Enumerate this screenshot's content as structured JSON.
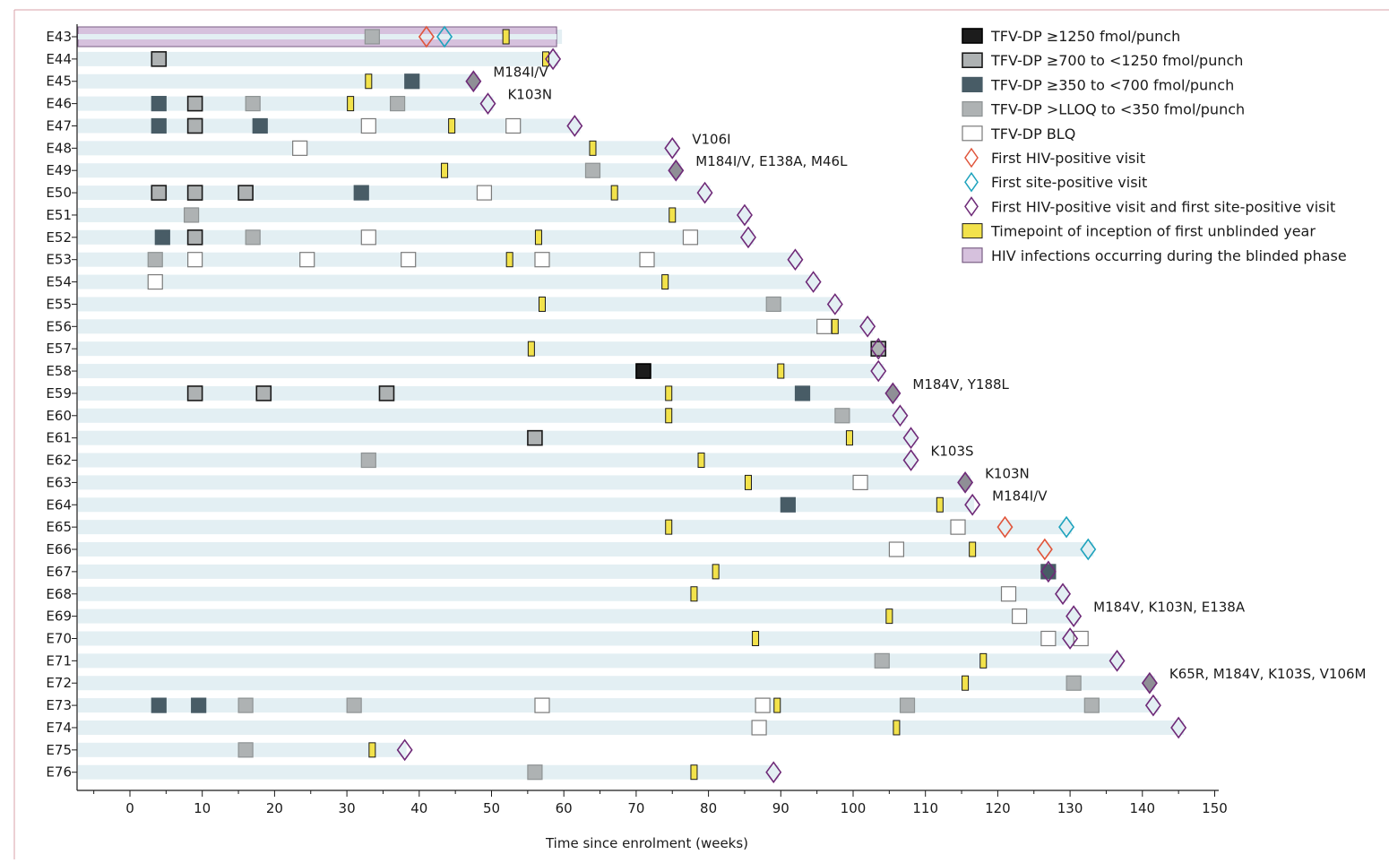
{
  "chart_data": {
    "type": "timeline",
    "xlabel": "Time since enrolment (weeks)",
    "xlim": [
      -7,
      151
    ],
    "xticks": [
      0,
      10,
      20,
      30,
      40,
      50,
      60,
      70,
      80,
      90,
      100,
      110,
      120,
      130,
      140,
      150
    ],
    "legend": [
      {
        "key": "c1250",
        "label": "TFV-DP ≥1250 fmol/punch",
        "shape": "square",
        "fill": "#1c1c1c",
        "stroke": "#000000"
      },
      {
        "key": "c700",
        "label": "TFV-DP ≥700 to <1250 fmol/punch",
        "shape": "square",
        "fill": "#aeb2b3",
        "stroke": "#1a1a1a"
      },
      {
        "key": "c350",
        "label": "TFV-DP ≥350 to <700 fmol/punch",
        "shape": "square",
        "fill": "#485c66",
        "stroke": "#485c66"
      },
      {
        "key": "clloq",
        "label": "TFV-DP >LLOQ to <350 fmol/punch",
        "shape": "square",
        "fill": "#aeb2b3",
        "stroke": "#8e9394"
      },
      {
        "key": "cblq",
        "label": "TFV-DP BLQ",
        "shape": "square",
        "fill": "#ffffff",
        "stroke": "#7a7a7a"
      },
      {
        "key": "hivpos",
        "label": "First HIV-positive visit",
        "shape": "diamond",
        "fill": "none",
        "stroke": "#e0553b"
      },
      {
        "key": "sitepos",
        "label": "First site-positive visit",
        "shape": "diamond",
        "fill": "none",
        "stroke": "#1fa3bd"
      },
      {
        "key": "both",
        "label": "First HIV-positive visit and first site-positive visit",
        "shape": "diamond",
        "fill": "none",
        "stroke": "#6e2a78"
      },
      {
        "key": "unblind",
        "label": "Timepoint of inception of first unblinded year",
        "shape": "rect",
        "fill": "#f2e24b",
        "stroke": "#1a1a1a"
      },
      {
        "key": "blinded",
        "label": "HIV infections occurring during the blinded phase",
        "shape": "square",
        "fill": "#d6c1dd",
        "stroke": "#7a5e85"
      }
    ],
    "participants": [
      {
        "id": "E43",
        "end": 59,
        "blinded": true,
        "marks": [
          {
            "x": 33.5,
            "k": "clloq"
          },
          {
            "x": 52,
            "k": "unblind"
          },
          {
            "x": 41,
            "k": "hivpos"
          },
          {
            "x": 43.5,
            "k": "sitepos"
          }
        ],
        "anno": ""
      },
      {
        "id": "E44",
        "end": 58.5,
        "marks": [
          {
            "x": 4,
            "k": "c700"
          },
          {
            "x": 57.5,
            "k": "unblind"
          },
          {
            "x": 58.5,
            "k": "both"
          }
        ],
        "anno": ""
      },
      {
        "id": "E45",
        "end": 47.5,
        "marks": [
          {
            "x": 33,
            "k": "unblind"
          },
          {
            "x": 39,
            "k": "c350"
          },
          {
            "x": 47.5,
            "k": "both",
            "filled": true
          }
        ],
        "anno": "M184I/V"
      },
      {
        "id": "E46",
        "end": 49.5,
        "marks": [
          {
            "x": 4,
            "k": "c350"
          },
          {
            "x": 9,
            "k": "c700"
          },
          {
            "x": 17,
            "k": "clloq"
          },
          {
            "x": 30.5,
            "k": "unblind"
          },
          {
            "x": 37,
            "k": "clloq"
          },
          {
            "x": 49.5,
            "k": "both"
          }
        ],
        "anno": "K103N"
      },
      {
        "id": "E47",
        "end": 61.5,
        "marks": [
          {
            "x": 4,
            "k": "c350"
          },
          {
            "x": 9,
            "k": "c700"
          },
          {
            "x": 18,
            "k": "c350"
          },
          {
            "x": 33,
            "k": "cblq"
          },
          {
            "x": 44.5,
            "k": "unblind"
          },
          {
            "x": 53,
            "k": "cblq"
          },
          {
            "x": 61.5,
            "k": "both"
          }
        ],
        "anno": ""
      },
      {
        "id": "E48",
        "end": 75,
        "marks": [
          {
            "x": 23.5,
            "k": "cblq"
          },
          {
            "x": 64,
            "k": "unblind"
          },
          {
            "x": 75,
            "k": "both"
          }
        ],
        "anno": "V106I"
      },
      {
        "id": "E49",
        "end": 75.5,
        "marks": [
          {
            "x": 43.5,
            "k": "unblind"
          },
          {
            "x": 64,
            "k": "clloq"
          },
          {
            "x": 75.5,
            "k": "both",
            "filled": true
          }
        ],
        "anno": "M184I/V, E138A, M46L"
      },
      {
        "id": "E50",
        "end": 79.5,
        "marks": [
          {
            "x": 4,
            "k": "c700"
          },
          {
            "x": 9,
            "k": "c700"
          },
          {
            "x": 16,
            "k": "c700"
          },
          {
            "x": 32,
            "k": "c350"
          },
          {
            "x": 49,
            "k": "cblq"
          },
          {
            "x": 67,
            "k": "unblind"
          },
          {
            "x": 79.5,
            "k": "both"
          }
        ],
        "anno": ""
      },
      {
        "id": "E51",
        "end": 85,
        "marks": [
          {
            "x": 8.5,
            "k": "clloq"
          },
          {
            "x": 75,
            "k": "unblind"
          },
          {
            "x": 85,
            "k": "both"
          }
        ],
        "anno": ""
      },
      {
        "id": "E52",
        "end": 85.5,
        "marks": [
          {
            "x": 4.5,
            "k": "c350"
          },
          {
            "x": 9,
            "k": "c700"
          },
          {
            "x": 17,
            "k": "clloq"
          },
          {
            "x": 33,
            "k": "cblq"
          },
          {
            "x": 56.5,
            "k": "unblind"
          },
          {
            "x": 77.5,
            "k": "cblq"
          },
          {
            "x": 85.5,
            "k": "both"
          }
        ],
        "anno": ""
      },
      {
        "id": "E53",
        "end": 92,
        "marks": [
          {
            "x": 3.5,
            "k": "clloq"
          },
          {
            "x": 9,
            "k": "cblq"
          },
          {
            "x": 24.5,
            "k": "cblq"
          },
          {
            "x": 38.5,
            "k": "cblq"
          },
          {
            "x": 52.5,
            "k": "unblind"
          },
          {
            "x": 57,
            "k": "cblq"
          },
          {
            "x": 71.5,
            "k": "cblq"
          },
          {
            "x": 92,
            "k": "both"
          }
        ],
        "anno": ""
      },
      {
        "id": "E54",
        "end": 94.5,
        "marks": [
          {
            "x": 3.5,
            "k": "cblq"
          },
          {
            "x": 74,
            "k": "unblind"
          },
          {
            "x": 94.5,
            "k": "both"
          }
        ],
        "anno": ""
      },
      {
        "id": "E55",
        "end": 97.5,
        "marks": [
          {
            "x": 57,
            "k": "unblind"
          },
          {
            "x": 89,
            "k": "clloq"
          },
          {
            "x": 97.5,
            "k": "both"
          }
        ],
        "anno": ""
      },
      {
        "id": "E56",
        "end": 102,
        "marks": [
          {
            "x": 96,
            "k": "cblq"
          },
          {
            "x": 97.5,
            "k": "unblind"
          },
          {
            "x": 102,
            "k": "both"
          }
        ],
        "anno": ""
      },
      {
        "id": "E57",
        "end": 103.5,
        "marks": [
          {
            "x": 55.5,
            "k": "unblind"
          },
          {
            "x": 103.5,
            "k": "c700"
          },
          {
            "x": 103.5,
            "k": "both"
          }
        ],
        "anno": ""
      },
      {
        "id": "E58",
        "end": 103.5,
        "marks": [
          {
            "x": 71,
            "k": "c1250"
          },
          {
            "x": 90,
            "k": "unblind"
          },
          {
            "x": 103.5,
            "k": "both"
          }
        ],
        "anno": ""
      },
      {
        "id": "E59",
        "end": 105.5,
        "marks": [
          {
            "x": 9,
            "k": "c700"
          },
          {
            "x": 18.5,
            "k": "c700"
          },
          {
            "x": 35.5,
            "k": "c700"
          },
          {
            "x": 74.5,
            "k": "unblind"
          },
          {
            "x": 93,
            "k": "c350"
          },
          {
            "x": 105.5,
            "k": "both",
            "filled": true
          }
        ],
        "anno": "M184V, Y188L"
      },
      {
        "id": "E60",
        "end": 106.5,
        "marks": [
          {
            "x": 74.5,
            "k": "unblind"
          },
          {
            "x": 98.5,
            "k": "clloq"
          },
          {
            "x": 106.5,
            "k": "both"
          }
        ],
        "anno": ""
      },
      {
        "id": "E61",
        "end": 108,
        "marks": [
          {
            "x": 56,
            "k": "c700"
          },
          {
            "x": 99.5,
            "k": "unblind"
          },
          {
            "x": 108,
            "k": "both"
          }
        ],
        "anno": ""
      },
      {
        "id": "E62",
        "end": 108,
        "marks": [
          {
            "x": 33,
            "k": "clloq"
          },
          {
            "x": 79,
            "k": "unblind"
          },
          {
            "x": 108,
            "k": "both"
          }
        ],
        "anno": "K103S"
      },
      {
        "id": "E63",
        "end": 115.5,
        "marks": [
          {
            "x": 85.5,
            "k": "unblind"
          },
          {
            "x": 101,
            "k": "cblq"
          },
          {
            "x": 115.5,
            "k": "both",
            "filled": true
          }
        ],
        "anno": "K103N"
      },
      {
        "id": "E64",
        "end": 116,
        "marks": [
          {
            "x": 91,
            "k": "c350"
          },
          {
            "x": 112,
            "k": "unblind"
          },
          {
            "x": 116.5,
            "k": "both"
          }
        ],
        "anno": "M184I/V"
      },
      {
        "id": "E65",
        "end": 129.5,
        "marks": [
          {
            "x": 74.5,
            "k": "unblind"
          },
          {
            "x": 114.5,
            "k": "cblq"
          },
          {
            "x": 121,
            "k": "hivpos"
          },
          {
            "x": 129.5,
            "k": "sitepos"
          }
        ],
        "anno": ""
      },
      {
        "id": "E66",
        "end": 132.5,
        "marks": [
          {
            "x": 106,
            "k": "cblq"
          },
          {
            "x": 116.5,
            "k": "unblind"
          },
          {
            "x": 126.5,
            "k": "hivpos"
          },
          {
            "x": 132.5,
            "k": "sitepos"
          }
        ],
        "anno": ""
      },
      {
        "id": "E67",
        "end": 127,
        "marks": [
          {
            "x": 81,
            "k": "unblind"
          },
          {
            "x": 127,
            "k": "c350"
          },
          {
            "x": 127,
            "k": "both"
          }
        ],
        "anno": ""
      },
      {
        "id": "E68",
        "end": 129,
        "marks": [
          {
            "x": 78,
            "k": "unblind"
          },
          {
            "x": 121.5,
            "k": "cblq"
          },
          {
            "x": 129,
            "k": "both"
          }
        ],
        "anno": ""
      },
      {
        "id": "E69",
        "end": 130.5,
        "marks": [
          {
            "x": 105,
            "k": "unblind"
          },
          {
            "x": 123,
            "k": "cblq"
          },
          {
            "x": 130.5,
            "k": "both"
          }
        ],
        "anno": "M184V, K103N, E138A"
      },
      {
        "id": "E70",
        "end": 131.5,
        "marks": [
          {
            "x": 86.5,
            "k": "unblind"
          },
          {
            "x": 127,
            "k": "cblq"
          },
          {
            "x": 131.5,
            "k": "cblq"
          },
          {
            "x": 130,
            "k": "both"
          }
        ],
        "anno": ""
      },
      {
        "id": "E71",
        "end": 136.5,
        "marks": [
          {
            "x": 104,
            "k": "clloq"
          },
          {
            "x": 118,
            "k": "unblind"
          },
          {
            "x": 136.5,
            "k": "both"
          }
        ],
        "anno": ""
      },
      {
        "id": "E72",
        "end": 141,
        "marks": [
          {
            "x": 115.5,
            "k": "unblind"
          },
          {
            "x": 130.5,
            "k": "clloq"
          },
          {
            "x": 141,
            "k": "both",
            "filled": true
          }
        ],
        "anno": "K65R, M184V, K103S, V106M"
      },
      {
        "id": "E73",
        "end": 141.5,
        "marks": [
          {
            "x": 4,
            "k": "c350"
          },
          {
            "x": 9.5,
            "k": "c350"
          },
          {
            "x": 16,
            "k": "clloq"
          },
          {
            "x": 31,
            "k": "clloq"
          },
          {
            "x": 57,
            "k": "cblq"
          },
          {
            "x": 87.5,
            "k": "cblq"
          },
          {
            "x": 89.5,
            "k": "unblind"
          },
          {
            "x": 107.5,
            "k": "clloq"
          },
          {
            "x": 133,
            "k": "clloq"
          },
          {
            "x": 141.5,
            "k": "both"
          }
        ],
        "anno": ""
      },
      {
        "id": "E74",
        "end": 145,
        "marks": [
          {
            "x": 87,
            "k": "cblq"
          },
          {
            "x": 106,
            "k": "unblind"
          },
          {
            "x": 145,
            "k": "both"
          }
        ],
        "anno": ""
      },
      {
        "id": "E75",
        "end": 37.5,
        "marks": [
          {
            "x": 16,
            "k": "clloq"
          },
          {
            "x": 33.5,
            "k": "unblind"
          },
          {
            "x": 38,
            "k": "both"
          }
        ],
        "anno": ""
      },
      {
        "id": "E76",
        "end": 89,
        "marks": [
          {
            "x": 56,
            "k": "clloq"
          },
          {
            "x": 78,
            "k": "unblind"
          },
          {
            "x": 89,
            "k": "both"
          }
        ],
        "anno": ""
      }
    ]
  }
}
